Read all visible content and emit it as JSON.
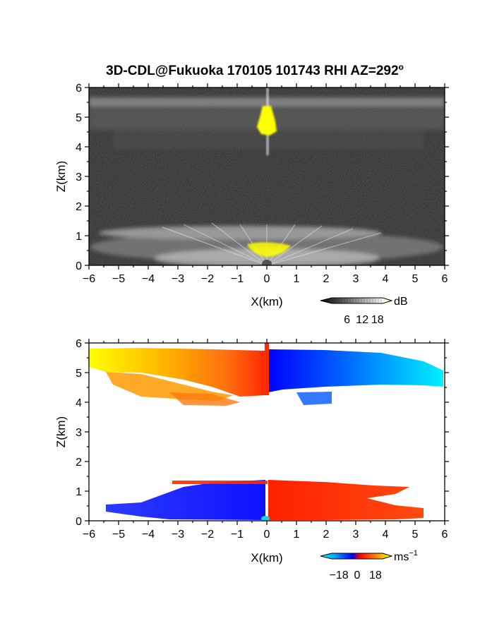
{
  "chart_data": {
    "title": "3D-CDL@Fukuoka 170105 101743 RHI AZ=292°",
    "panels": [
      {
        "type": "heatmap",
        "field": "reflectivity",
        "xlabel": "X(km)",
        "ylabel": "Z(km)",
        "xlim": [
          -6,
          6
        ],
        "ylim": [
          0,
          6
        ],
        "xticks": [
          "−6",
          "−5",
          "−4",
          "−3",
          "−2",
          "−1",
          "0",
          "1",
          "2",
          "3",
          "4",
          "5",
          "6"
        ],
        "yticks": [
          "0",
          "1",
          "2",
          "3",
          "4",
          "5",
          "6"
        ],
        "colorbar": {
          "unit": "dB",
          "range": [
            0,
            20
          ],
          "tick_labels": [
            "6",
            "12",
            "18"
          ],
          "tick_values": [
            6,
            12,
            18
          ]
        },
        "features": [
          {
            "name": "upper cloud layer",
            "z_range": [
              4.2,
              5.8
            ],
            "x_range": [
              -6,
              6
            ]
          },
          {
            "name": "lower cloud layer",
            "z_range": [
              0.0,
              1.3
            ],
            "x_range": [
              -6,
              6
            ]
          },
          {
            "name": "strong echo near zenith",
            "x_range": [
              -0.25,
              0.25
            ],
            "z_range": [
              4.4,
              5.7
            ]
          }
        ]
      },
      {
        "type": "heatmap",
        "field": "doppler velocity",
        "xlabel": "X(km)",
        "ylabel": "Z(km)",
        "xlim": [
          -6,
          6
        ],
        "ylim": [
          0,
          6
        ],
        "xticks": [
          "−6",
          "−5",
          "−4",
          "−3",
          "−2",
          "−1",
          "0",
          "1",
          "2",
          "3",
          "4",
          "5",
          "6"
        ],
        "yticks": [
          "0",
          "1",
          "2",
          "3",
          "4",
          "5",
          "6"
        ],
        "colorbar": {
          "unit": "ms",
          "unit_exponent": "−1",
          "range": [
            -25,
            25
          ],
          "tick_labels": [
            "−18",
            "0",
            "18"
          ],
          "tick_values": [
            -18,
            0,
            18
          ]
        },
        "features": [
          {
            "name": "upper layer west (toward)",
            "x_range": [
              -6,
              0
            ],
            "z_range": [
              4.0,
              5.9
            ],
            "velocity_range": [
              0,
              20
            ]
          },
          {
            "name": "upper layer east (away)",
            "x_range": [
              0,
              6
            ],
            "z_range": [
              4.0,
              5.9
            ],
            "velocity_range": [
              -20,
              0
            ]
          },
          {
            "name": "lower layer west",
            "x_range": [
              -5.5,
              0
            ],
            "z_range": [
              0.0,
              1.3
            ],
            "velocity_range": [
              -8,
              -5
            ]
          },
          {
            "name": "lower layer east",
            "x_range": [
              0,
              5.8
            ],
            "z_range": [
              0.0,
              1.3
            ],
            "velocity_range": [
              5,
              8
            ]
          }
        ]
      }
    ]
  }
}
